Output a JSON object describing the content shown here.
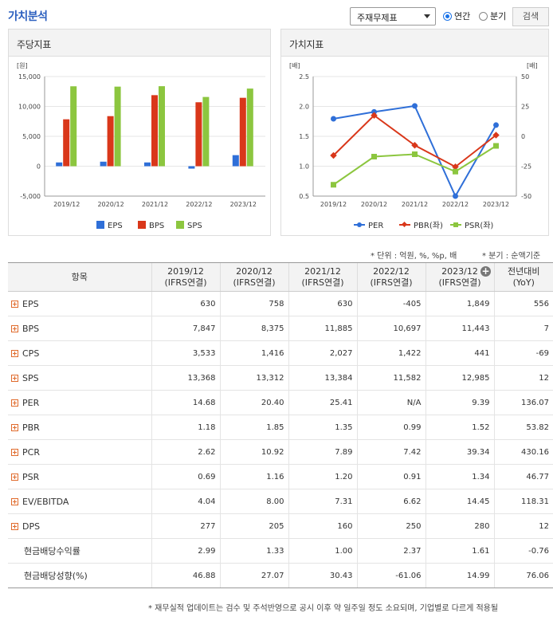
{
  "header": {
    "title": "가치분석",
    "select_value": "주재무제표",
    "radio_annual": "연간",
    "radio_quarter": "분기",
    "search_label": "검색"
  },
  "charts": {
    "left_title": "주당지표",
    "right_title": "가치지표"
  },
  "chart_data": [
    {
      "type": "bar",
      "title": "주당지표",
      "ylabel": "[원]",
      "categories": [
        "2019/12",
        "2020/12",
        "2021/12",
        "2022/12",
        "2023/12"
      ],
      "yticks": [
        "15,000",
        "10,000",
        "5,000",
        "0",
        "-5,000"
      ],
      "ylim": [
        -5000,
        15000
      ],
      "grid": true,
      "legend": "bottom",
      "series": [
        {
          "name": "EPS",
          "color": "#2f6fd8",
          "values": [
            630,
            758,
            630,
            -405,
            1849
          ]
        },
        {
          "name": "BPS",
          "color": "#d9371a",
          "values": [
            7847,
            8375,
            11885,
            10697,
            11443
          ]
        },
        {
          "name": "SPS",
          "color": "#8cc63f",
          "values": [
            13368,
            13312,
            13384,
            11582,
            12985
          ]
        }
      ]
    },
    {
      "type": "line",
      "title": "가치지표",
      "ylabel_left": "[배]",
      "ylabel_right": "[배]",
      "categories": [
        "2019/12",
        "2020/12",
        "2021/12",
        "2022/12",
        "2023/12"
      ],
      "yticks_left": [
        "2.5",
        "2.0",
        "1.5",
        "1.0",
        "0.5"
      ],
      "yticks_right": [
        "50",
        "25",
        "0",
        "-25",
        "-50"
      ],
      "ylim_left": [
        0.5,
        2.5
      ],
      "ylim_right": [
        -50,
        50
      ],
      "grid": true,
      "legend": "bottom",
      "series": [
        {
          "name": "PER",
          "color": "#2f6fd8",
          "axis": "right",
          "marker": "circle",
          "values": [
            14.68,
            20.4,
            25.41,
            null,
            9.39
          ]
        },
        {
          "name": "PBR(좌)",
          "color": "#d9371a",
          "axis": "left",
          "marker": "diamond",
          "values": [
            1.18,
            1.85,
            1.35,
            0.99,
            1.52
          ]
        },
        {
          "name": "PSR(좌)",
          "color": "#8cc63f",
          "axis": "left",
          "marker": "square",
          "values": [
            0.69,
            1.16,
            1.2,
            0.91,
            1.34
          ]
        }
      ]
    }
  ],
  "notes": {
    "unit": "* 단위 : 억원, %, %p, 배",
    "quarter": "* 분기 : 순액기준"
  },
  "table": {
    "headers": [
      {
        "line1": "항목",
        "line2": ""
      },
      {
        "line1": "2019/12",
        "line2": "(IFRS연결)"
      },
      {
        "line1": "2020/12",
        "line2": "(IFRS연결)"
      },
      {
        "line1": "2021/12",
        "line2": "(IFRS연결)"
      },
      {
        "line1": "2022/12",
        "line2": "(IFRS연결)"
      },
      {
        "line1": "2023/12",
        "line2": "(IFRS연결)"
      },
      {
        "line1": "전년대비",
        "line2": "(YoY)"
      }
    ],
    "rows": [
      {
        "label": "EPS",
        "expandable": true,
        "values": [
          "630",
          "758",
          "630",
          "-405",
          "1,849",
          "556"
        ]
      },
      {
        "label": "BPS",
        "expandable": true,
        "values": [
          "7,847",
          "8,375",
          "11,885",
          "10,697",
          "11,443",
          "7"
        ]
      },
      {
        "label": "CPS",
        "expandable": true,
        "values": [
          "3,533",
          "1,416",
          "2,027",
          "1,422",
          "441",
          "-69"
        ]
      },
      {
        "label": "SPS",
        "expandable": true,
        "values": [
          "13,368",
          "13,312",
          "13,384",
          "11,582",
          "12,985",
          "12"
        ]
      },
      {
        "label": "PER",
        "expandable": true,
        "values": [
          "14.68",
          "20.40",
          "25.41",
          "N/A",
          "9.39",
          "136.07"
        ]
      },
      {
        "label": "PBR",
        "expandable": true,
        "values": [
          "1.18",
          "1.85",
          "1.35",
          "0.99",
          "1.52",
          "53.82"
        ]
      },
      {
        "label": "PCR",
        "expandable": true,
        "values": [
          "2.62",
          "10.92",
          "7.89",
          "7.42",
          "39.34",
          "430.16"
        ]
      },
      {
        "label": "PSR",
        "expandable": true,
        "values": [
          "0.69",
          "1.16",
          "1.20",
          "0.91",
          "1.34",
          "46.77"
        ]
      },
      {
        "label": "EV/EBITDA",
        "expandable": true,
        "values": [
          "4.04",
          "8.00",
          "7.31",
          "6.62",
          "14.45",
          "118.31"
        ]
      },
      {
        "label": "DPS",
        "expandable": true,
        "values": [
          "277",
          "205",
          "160",
          "250",
          "280",
          "12"
        ]
      },
      {
        "label": "현금배당수익률",
        "expandable": false,
        "values": [
          "2.99",
          "1.33",
          "1.00",
          "2.37",
          "1.61",
          "-0.76"
        ]
      },
      {
        "label": "현금배당성향(%)",
        "expandable": false,
        "values": [
          "46.88",
          "27.07",
          "30.43",
          "-61.06",
          "14.99",
          "76.06"
        ]
      }
    ]
  },
  "footer": {
    "note": "* 재무실적 업데이트는 검수 및 주석반영으로 공시 이후 약 일주일 정도 소요되며, 기업별로 다르게 적용될"
  }
}
